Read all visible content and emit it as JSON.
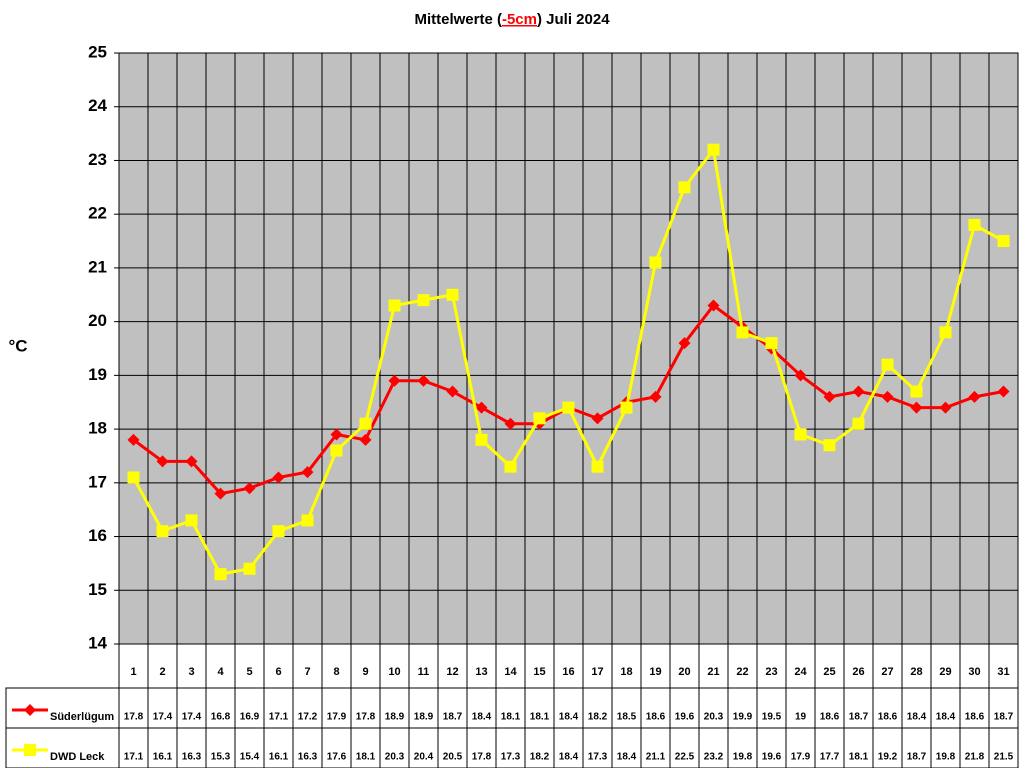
{
  "chart_data": {
    "type": "line",
    "title_parts": [
      "Mittelwerte (",
      "-5cm",
      ") Juli 2024"
    ],
    "title_highlight_color": "#ff0000",
    "y_label": "°C",
    "categories": [
      "1",
      "2",
      "3",
      "4",
      "5",
      "6",
      "7",
      "8",
      "9",
      "10",
      "11",
      "12",
      "13",
      "14",
      "15",
      "16",
      "17",
      "18",
      "19",
      "20",
      "21",
      "22",
      "23",
      "24",
      "25",
      "26",
      "27",
      "28",
      "29",
      "30",
      "31"
    ],
    "series": [
      {
        "name": "Süderlügum",
        "color": "#ff0000",
        "marker": "diamond",
        "values": [
          17.8,
          17.4,
          17.4,
          16.8,
          16.9,
          17.1,
          17.2,
          17.9,
          17.8,
          18.9,
          18.9,
          18.7,
          18.4,
          18.1,
          18.1,
          18.4,
          18.2,
          18.5,
          18.6,
          19.6,
          20.3,
          19.9,
          19.5,
          19,
          18.6,
          18.7,
          18.6,
          18.4,
          18.4,
          18.6,
          18.7
        ]
      },
      {
        "name": "DWD Leck",
        "color": "#ffff00",
        "marker": "square",
        "values": [
          17.1,
          16.1,
          16.3,
          15.3,
          15.4,
          16.1,
          16.3,
          17.6,
          18.1,
          20.3,
          20.4,
          20.5,
          17.8,
          17.3,
          18.2,
          18.4,
          17.3,
          18.4,
          21.1,
          22.5,
          23.2,
          19.8,
          19.6,
          17.9,
          17.7,
          18.1,
          19.2,
          18.7,
          19.8,
          21.8,
          21.5
        ]
      }
    ],
    "ylim": [
      14,
      25
    ],
    "yticks": [
      14,
      15,
      16,
      17,
      18,
      19,
      20,
      21,
      22,
      23,
      24,
      25
    ],
    "grid": true,
    "plot_background": "#c0c0c0"
  }
}
